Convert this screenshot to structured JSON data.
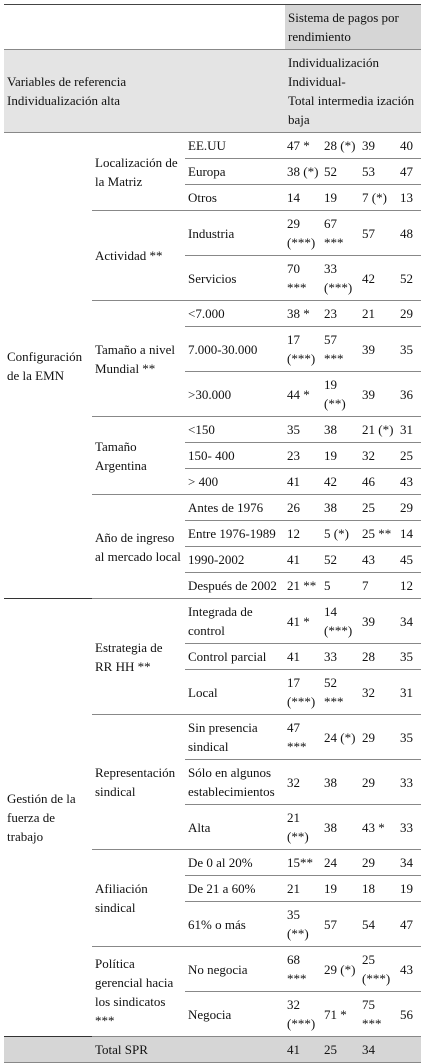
{
  "header": {
    "system": "Sistema de pagos por rendimiento",
    "variables": [
      "Variables de referencia",
      "Individualización alta"
    ],
    "columns": [
      "Individualización Individual-",
      "Total intermedia ización baja"
    ]
  },
  "sections": [
    {
      "label": "Configuración de la EMN",
      "groups": [
        {
          "label": "Localización de la Matriz",
          "rows": [
            {
              "label": "EE.UU",
              "values": [
                "47 *",
                "28 (*)",
                "39",
                "40"
              ]
            },
            {
              "label": "Europa",
              "values": [
                "38 (*)",
                "52",
                "53",
                "47"
              ]
            },
            {
              "label": "Otros",
              "values": [
                "14",
                "19",
                "7 (*)",
                "13"
              ]
            }
          ]
        },
        {
          "label": "Actividad **",
          "rows": [
            {
              "label": "Industria",
              "values": [
                "29 (***)",
                "67 ***",
                "57",
                "48"
              ]
            },
            {
              "label": "Servicios",
              "values": [
                "70 ***",
                "33 (***)",
                "42",
                "52"
              ]
            }
          ]
        },
        {
          "label": "Tamaño a nivel Mundial **",
          "rows": [
            {
              "label": "<7.000",
              "values": [
                "38 *",
                "23",
                "21",
                "29"
              ]
            },
            {
              "label": "7.000-30.000",
              "values": [
                "17 (***)",
                "57 ***",
                "39",
                "35"
              ]
            },
            {
              "label": ">30.000",
              "values": [
                "44 *",
                "19 (**)",
                "39",
                "36"
              ]
            }
          ]
        },
        {
          "label": "Tamaño Argentina",
          "rows": [
            {
              "label": "<150",
              "values": [
                "35",
                "38",
                "21 (*)",
                "31"
              ]
            },
            {
              "label": "150- 400",
              "values": [
                "23",
                "19",
                "32",
                "25"
              ]
            },
            {
              "label": "> 400",
              "values": [
                "41",
                "42",
                "46",
                "43"
              ]
            }
          ]
        },
        {
          "label": "Año de ingreso al mercado local",
          "rows": [
            {
              "label": "Antes de 1976",
              "values": [
                "26",
                "38",
                "25",
                "29"
              ]
            },
            {
              "label": "Entre 1976-1989",
              "values": [
                "12",
                "5 (*)",
                "25 **",
                "14"
              ]
            },
            {
              "label": "1990-2002",
              "values": [
                "41",
                "52",
                "43",
                "45"
              ]
            },
            {
              "label": "Después de 2002",
              "values": [
                "21 **",
                "5",
                "7",
                "12"
              ]
            }
          ]
        }
      ]
    },
    {
      "label": "Gestión de la fuerza de trabajo",
      "groups": [
        {
          "label": "Estrategia de RR HH **",
          "rows": [
            {
              "label": "Integrada de control",
              "values": [
                "41 *",
                "14 (***)",
                "39",
                "34"
              ]
            },
            {
              "label": "Control parcial",
              "values": [
                "41",
                "33",
                "28",
                "35"
              ]
            },
            {
              "label": "Local",
              "values": [
                "17 (***)",
                "52 ***",
                "32",
                "31"
              ]
            }
          ]
        },
        {
          "label": "Representación sindical",
          "rows": [
            {
              "label": "Sin presencia sindical",
              "values": [
                "47 ***",
                "24 (*)",
                "29",
                "35"
              ]
            },
            {
              "label": "Sólo en algunos establecimientos",
              "values": [
                "32",
                "38",
                "29",
                "33"
              ]
            },
            {
              "label": "Alta",
              "values": [
                "21 (**)",
                "38",
                "43 *",
                "33"
              ]
            }
          ]
        },
        {
          "label": "Afiliación sindical",
          "rows": [
            {
              "label": "De 0 al 20%",
              "values": [
                "15**",
                "24",
                "29",
                "34"
              ]
            },
            {
              "label": "De 21 a 60%",
              "values": [
                "21",
                "19",
                "18",
                "19"
              ]
            },
            {
              "label": "61% o más",
              "values": [
                "35 (**)",
                "57",
                "54",
                "47"
              ]
            }
          ]
        },
        {
          "label": "Política gerencial hacia los sindicatos ***",
          "rows": [
            {
              "label": "No negocia",
              "values": [
                "68 ***",
                "29 (*)",
                "25 (***)",
                "43"
              ]
            },
            {
              "label": "Negocia",
              "values": [
                "32 (***)",
                "71 *",
                "75 ***",
                "56"
              ]
            }
          ]
        }
      ]
    }
  ],
  "total": {
    "label": "Total SPR",
    "values": [
      "41",
      "25",
      "34"
    ]
  }
}
